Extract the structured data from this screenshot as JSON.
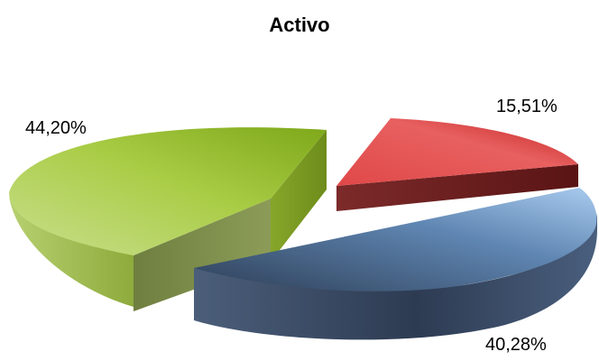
{
  "chart_data": {
    "type": "pie",
    "title": "Activo",
    "slices": [
      {
        "label": "15,51%",
        "value": 15.51,
        "color": "#d93a3a"
      },
      {
        "label": "40,28%",
        "value": 40.28,
        "color": "#4a6a90"
      },
      {
        "label": "44,20%",
        "value": 44.2,
        "color": "#9cc030"
      }
    ],
    "exploded": true,
    "style": "3d"
  }
}
